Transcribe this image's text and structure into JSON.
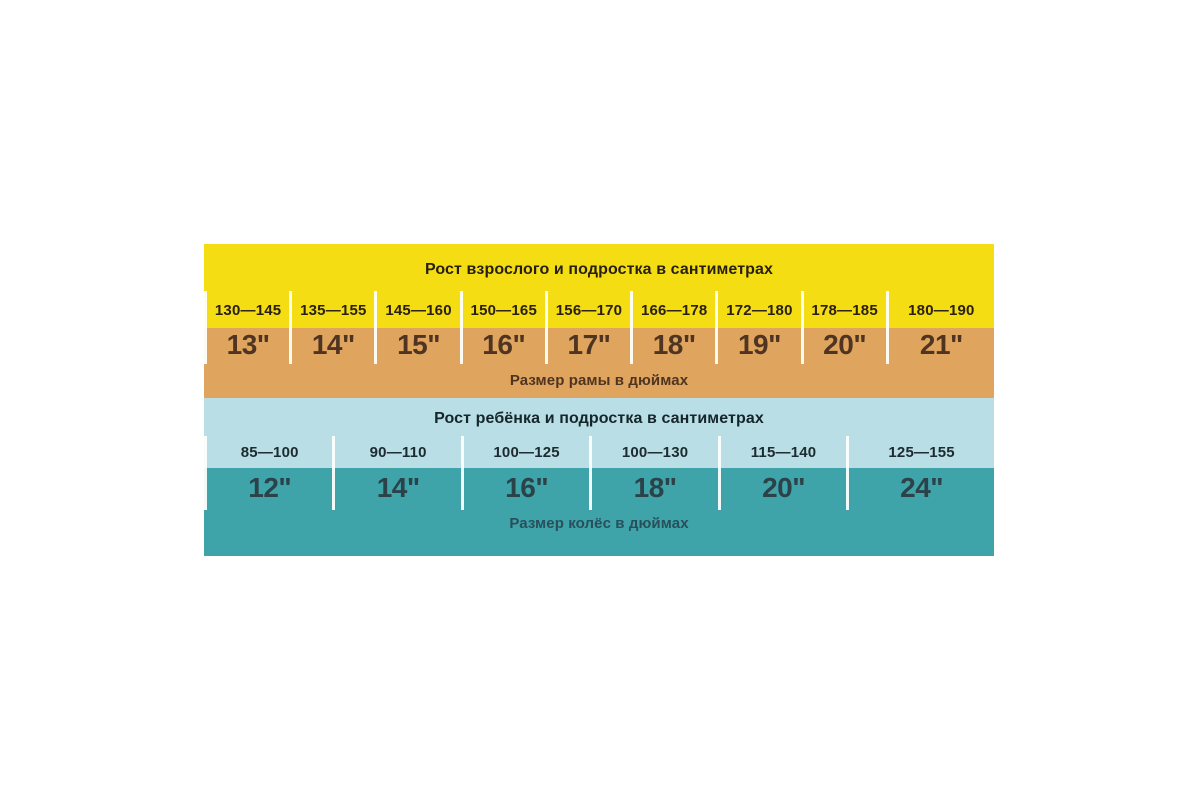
{
  "page": {
    "background": "#ffffff"
  },
  "colors": {
    "adult_height_band": "#F4DD12",
    "frame_size_band": "#DFA45E",
    "child_height_band": "#B9DEE5",
    "wheel_size_band": "#3FA3AA",
    "divider": "#FFFFFF"
  },
  "adult": {
    "header": "Рост взрослого и подростка в сантиметрах",
    "caption": "Размер рамы в дюймах",
    "columns": [
      {
        "height_cm": "130—145",
        "size_in": "13\""
      },
      {
        "height_cm": "135—155",
        "size_in": "14\""
      },
      {
        "height_cm": "145—160",
        "size_in": "15\""
      },
      {
        "height_cm": "150—165",
        "size_in": "16\""
      },
      {
        "height_cm": "156—170",
        "size_in": "17\""
      },
      {
        "height_cm": "166—178",
        "size_in": "18\""
      },
      {
        "height_cm": "172—180",
        "size_in": "19\""
      },
      {
        "height_cm": "178—185",
        "size_in": "20\""
      },
      {
        "height_cm": "180—190",
        "size_in": "21\""
      }
    ]
  },
  "child": {
    "header": "Рост ребёнка и подростка в сантиметрах",
    "caption": "Размер колёс в дюймах",
    "columns": [
      {
        "height_cm": "85—100",
        "size_in": "12\""
      },
      {
        "height_cm": "90—110",
        "size_in": "14\""
      },
      {
        "height_cm": "100—125",
        "size_in": "16\""
      },
      {
        "height_cm": "100—130",
        "size_in": "18\""
      },
      {
        "height_cm": "115—140",
        "size_in": "20\""
      },
      {
        "height_cm": "125—155",
        "size_in": "24\""
      }
    ]
  },
  "chart_data": [
    {
      "type": "table",
      "title": "Рост взрослого и подростка в сантиметрах",
      "caption": "Размер рамы в дюймах",
      "categories": [
        "130—145",
        "135—155",
        "145—160",
        "150—165",
        "156—170",
        "166—178",
        "172—180",
        "178—185",
        "180—190"
      ],
      "values": [
        "13\"",
        "14\"",
        "15\"",
        "16\"",
        "17\"",
        "18\"",
        "19\"",
        "20\"",
        "21\""
      ]
    },
    {
      "type": "table",
      "title": "Рост ребёнка и подростка в сантиметрах",
      "caption": "Размер колёс в дюймах",
      "categories": [
        "85—100",
        "90—110",
        "100—125",
        "100—130",
        "115—140",
        "125—155"
      ],
      "values": [
        "12\"",
        "14\"",
        "16\"",
        "18\"",
        "20\"",
        "24\""
      ]
    }
  ]
}
